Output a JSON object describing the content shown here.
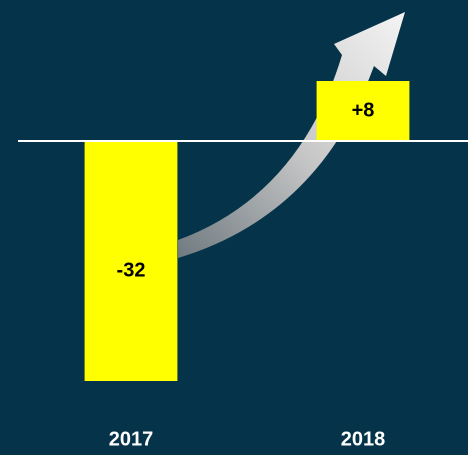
{
  "chart_data": {
    "type": "bar",
    "categories": [
      "2017",
      "2018"
    ],
    "values": [
      -32,
      8
    ],
    "value_labels": [
      "-32",
      "+8"
    ],
    "color": "#ffff00",
    "ylim": [
      -35,
      16
    ]
  }
}
